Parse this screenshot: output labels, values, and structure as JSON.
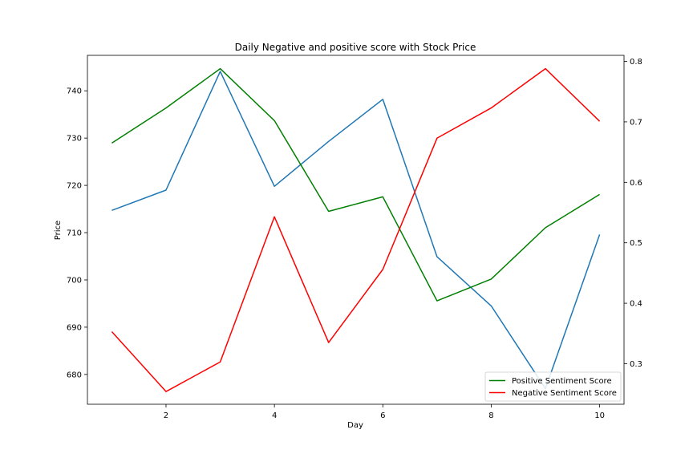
{
  "chart_data": {
    "type": "line",
    "title": "Daily Negative and positive score with Stock Price",
    "xlabel": "Day",
    "ylabel": "Price",
    "x": [
      1,
      2,
      3,
      4,
      5,
      6,
      7,
      8,
      9,
      10
    ],
    "xlim": [
      0.55,
      10.45
    ],
    "xticks": [
      2,
      4,
      6,
      8,
      10
    ],
    "ylim_left": [
      673.7,
      747.5
    ],
    "yticks_left": [
      680,
      690,
      700,
      710,
      720,
      730,
      740
    ],
    "ylim_right": [
      0.233,
      0.81
    ],
    "yticks_right": [
      0.3,
      0.4,
      0.5,
      0.6,
      0.7,
      0.8
    ],
    "grid": false,
    "legend_position": "lower-right",
    "series": [
      {
        "id": "price",
        "axis": "left",
        "color": "#1f77b4",
        "values": [
          714.7,
          719.0,
          744.1,
          719.8,
          729.3,
          738.2,
          704.9,
          694.5,
          677.0,
          709.6
        ]
      },
      {
        "id": "positive",
        "name": "Positive Sentiment Score",
        "axis": "right",
        "color": "#008000",
        "values": [
          0.665,
          0.723,
          0.788,
          0.702,
          0.552,
          0.576,
          0.404,
          0.44,
          0.525,
          0.58
        ]
      },
      {
        "id": "negative",
        "name": "Negative Sentiment Score",
        "axis": "right",
        "color": "#ff0000",
        "values": [
          0.353,
          0.254,
          0.303,
          0.543,
          0.335,
          0.456,
          0.673,
          0.723,
          0.788,
          0.701
        ]
      }
    ]
  }
}
